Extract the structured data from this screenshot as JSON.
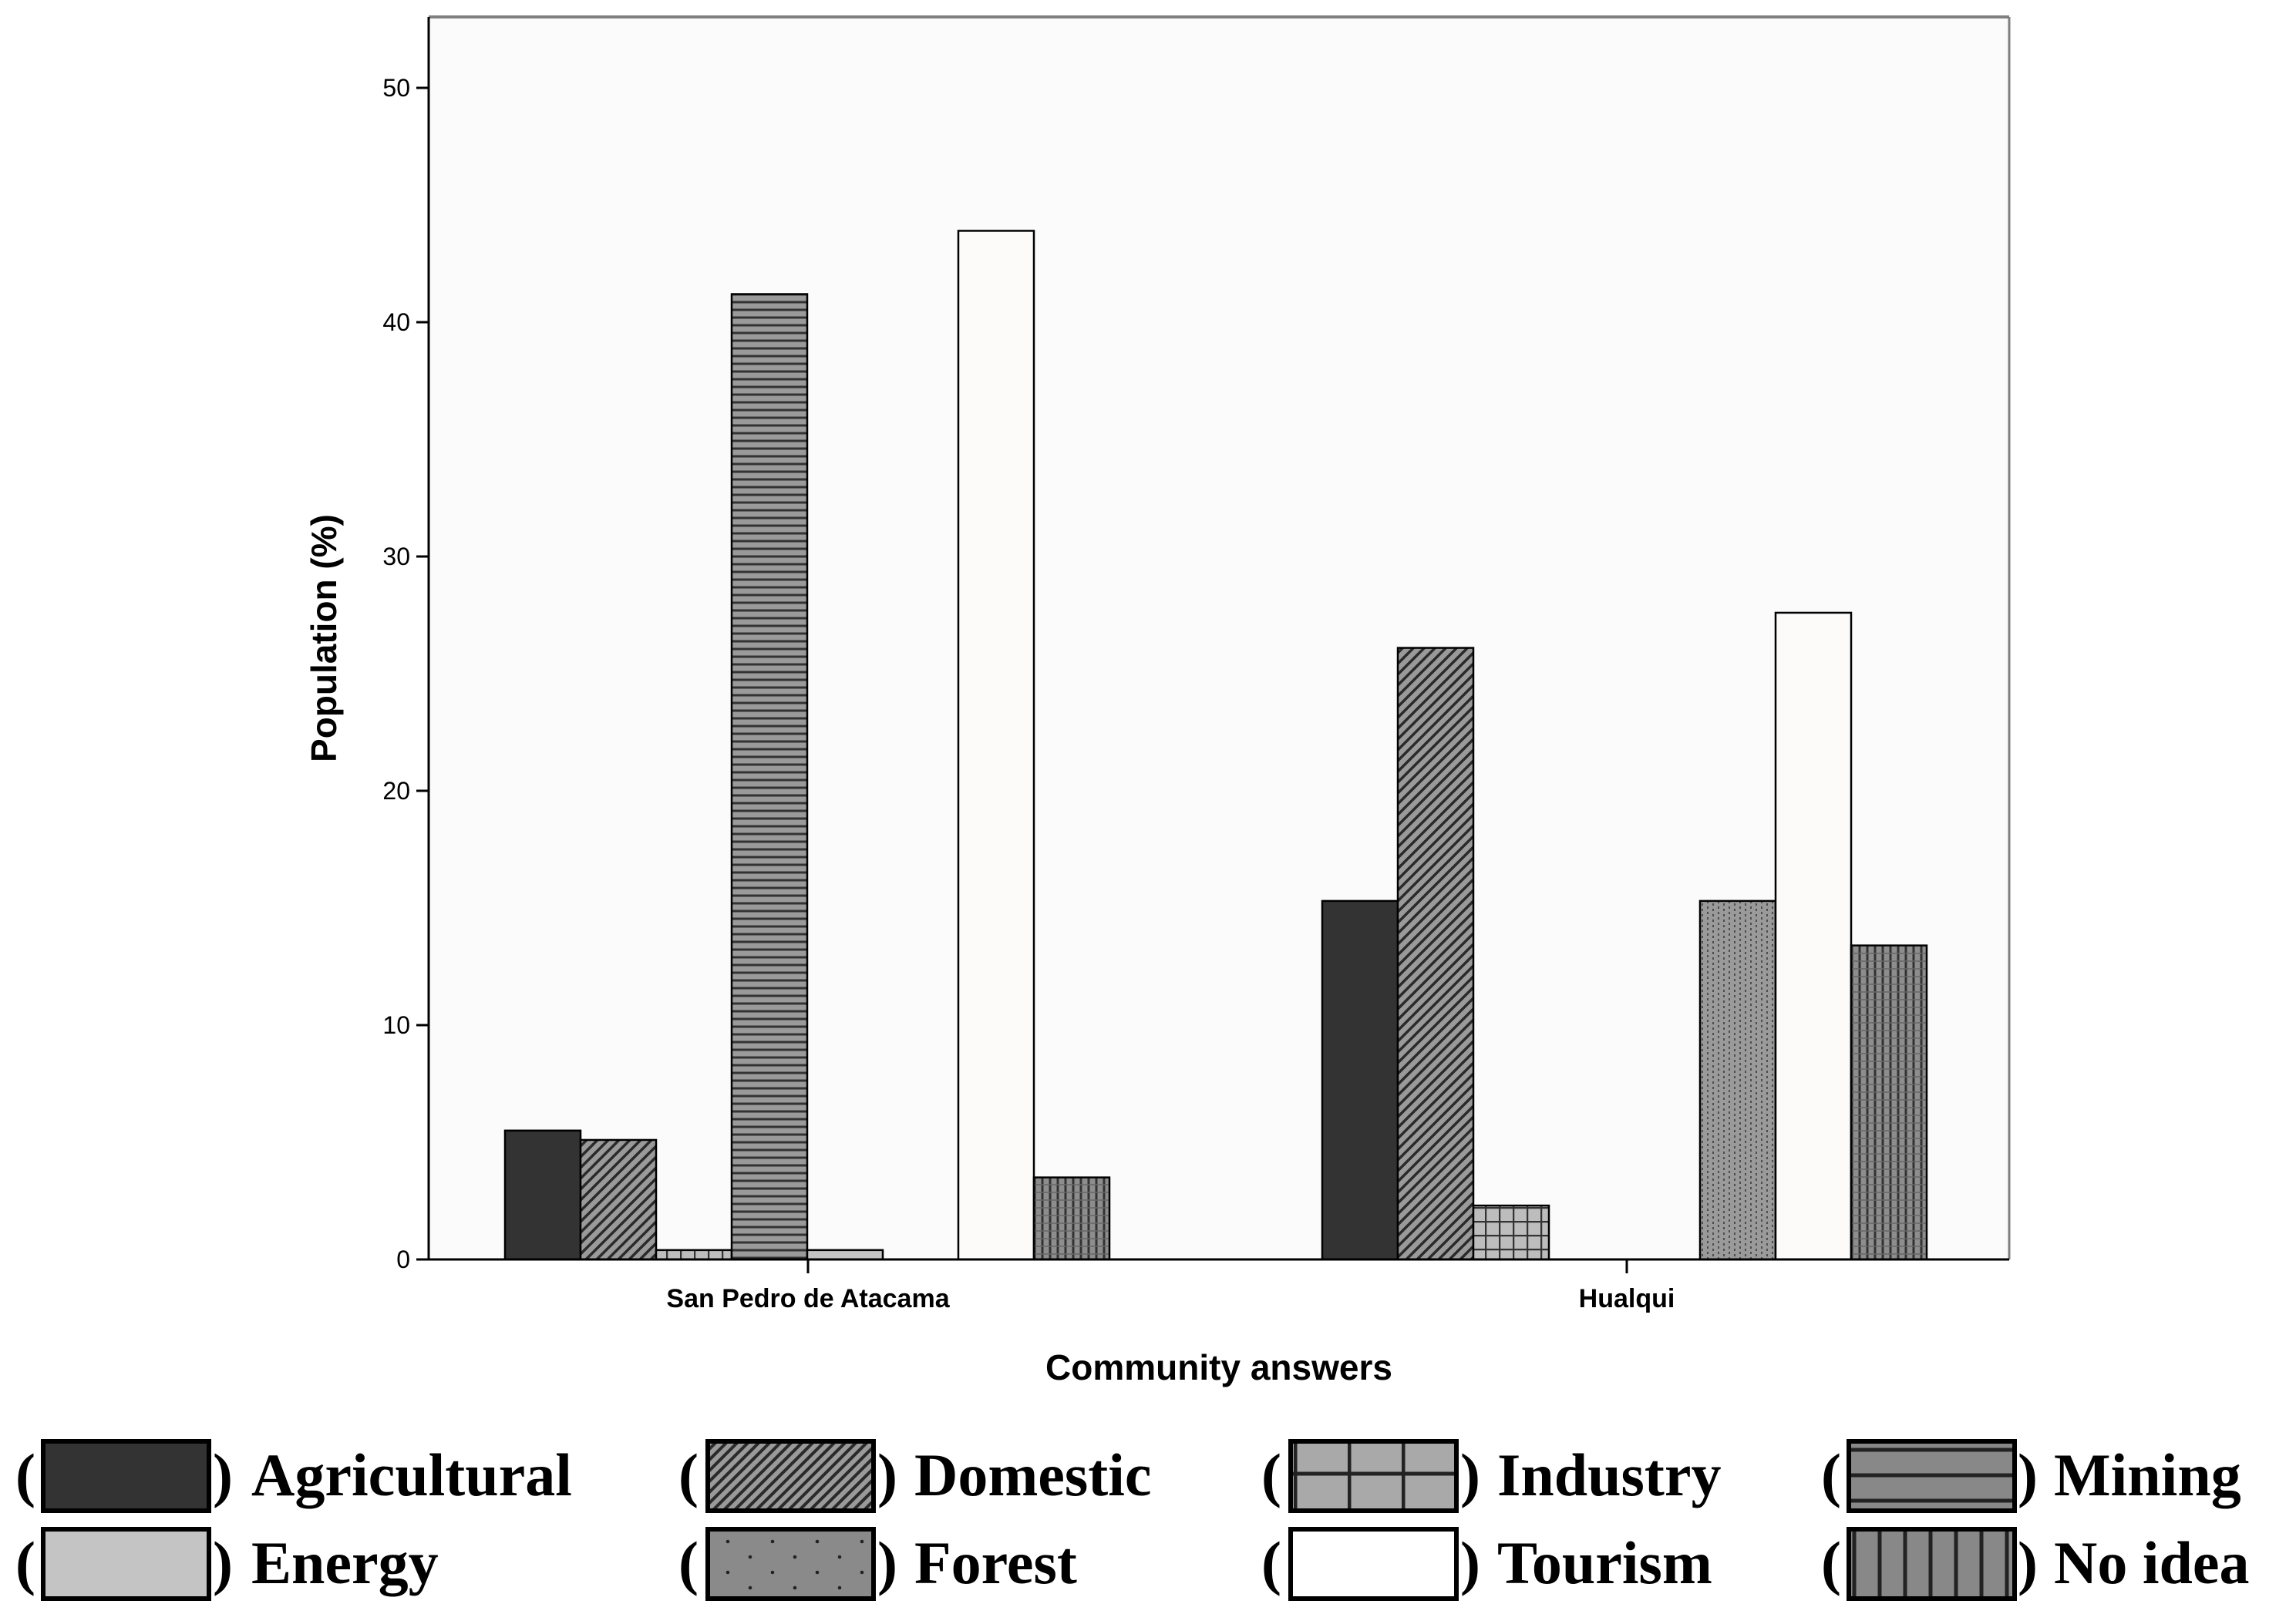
{
  "chart_data": {
    "type": "bar",
    "title": "",
    "xlabel": "Community answers",
    "ylabel": "Population (%)",
    "ylim": [
      0,
      55
    ],
    "yticks": [
      0,
      10,
      20,
      30,
      40,
      50
    ],
    "categories": [
      "San Pedro de Atacama",
      "Hualqui"
    ],
    "series": [
      {
        "name": "Agricultural",
        "values": [
          5.5,
          15.3
        ]
      },
      {
        "name": "Domestic",
        "values": [
          5.1,
          26.1
        ]
      },
      {
        "name": "Industry",
        "values": [
          0.4,
          2.3
        ]
      },
      {
        "name": "Mining",
        "values": [
          41.2,
          0
        ]
      },
      {
        "name": "Energy",
        "values": [
          0.4,
          0
        ]
      },
      {
        "name": "Forest",
        "values": [
          0,
          15.3
        ]
      },
      {
        "name": "Tourism",
        "values": [
          43.9,
          27.6
        ]
      },
      {
        "name": "No idea",
        "values": [
          3.5,
          13.4
        ]
      }
    ],
    "legend": {
      "placement": "bottom",
      "rows": [
        [
          "Agricultural",
          "Domestic",
          "Industry",
          "Mining"
        ],
        [
          "Energy",
          "Forest",
          "Tourism",
          "No idea"
        ]
      ]
    }
  },
  "colors": {
    "plot_background": "#fbfbfb",
    "Agricultural": "#333333",
    "Domestic": "#8c8c8c",
    "Industry": "#b3b3b3",
    "Mining": "#7f7f7f",
    "Energy": "#c4c4c4",
    "Forest": "#8a8a8a",
    "Tourism": "#fdfafa",
    "No idea": "#7a7a7a"
  }
}
